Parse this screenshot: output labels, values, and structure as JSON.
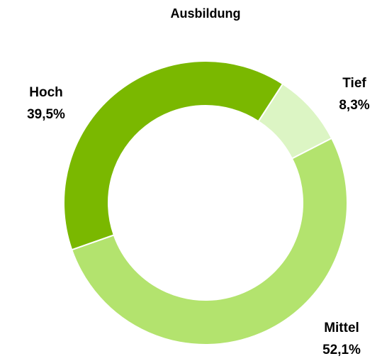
{
  "chart_data": {
    "type": "donut",
    "title": "Ausbildung",
    "categories": [
      "Tief",
      "Mittel",
      "Hoch"
    ],
    "values": [
      8.3,
      52.1,
      39.5
    ],
    "value_labels": [
      "8,3%",
      "52,1%",
      "39,5%"
    ],
    "colors": [
      "#dcf5c4",
      "#b3e36e",
      "#7ab800"
    ]
  }
}
